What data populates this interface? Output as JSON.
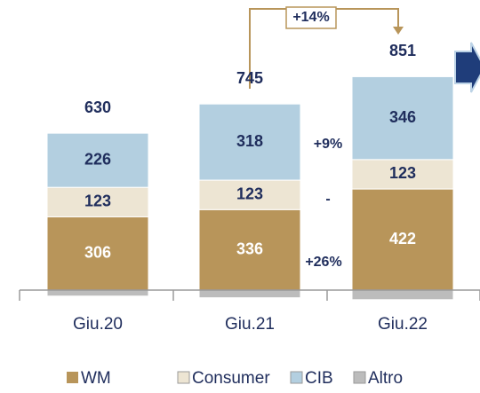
{
  "chart_data": {
    "type": "stacked_bar",
    "categories": [
      "Giu.20",
      "Giu.21",
      "Giu.22"
    ],
    "series": [
      {
        "name": "WM",
        "color": "#b8955a",
        "values": [
          306,
          336,
          422
        ]
      },
      {
        "name": "Consumer",
        "color": "#ede5d3",
        "values": [
          123,
          123,
          123
        ]
      },
      {
        "name": "CIB",
        "color": "#b3cfe0",
        "values": [
          226,
          318,
          346
        ]
      },
      {
        "name": "Altro",
        "color": "#bcbcbc",
        "values": [
          -25,
          -32,
          -40
        ]
      }
    ],
    "totals": [
      630,
      745,
      851
    ],
    "annotations": [
      "+14%",
      "+9%",
      "-",
      "+26%"
    ],
    "ylim": [
      -50,
      1150
    ]
  }
}
